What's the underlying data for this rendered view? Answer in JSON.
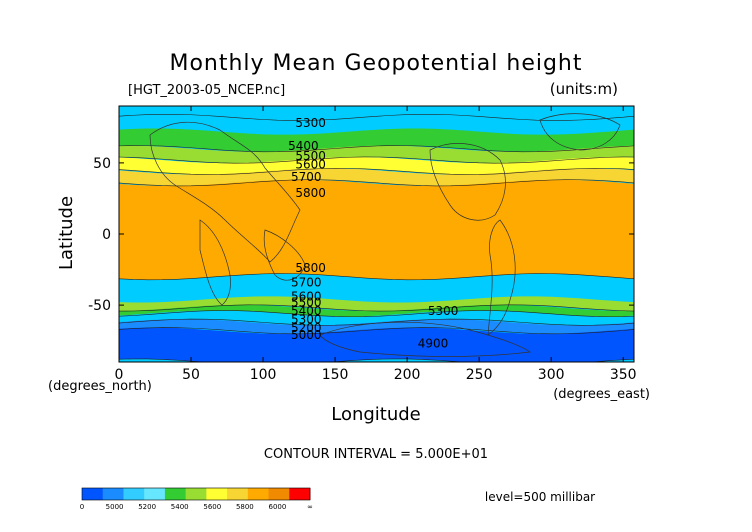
{
  "chart_data": {
    "type": "heatmap",
    "title": "Monthly Mean Geopotential height",
    "file_label": "[HGT_2003-05_NCEP.nc]",
    "units_label": "(units:m)",
    "xlabel": "Longitude",
    "ylabel": "Latitude",
    "x_unit_label": "(degrees_east)",
    "y_unit_label": "(degrees_north)",
    "xlim": [
      0,
      357.5
    ],
    "ylim": [
      -90,
      90
    ],
    "x_ticks": [
      0,
      50,
      100,
      150,
      200,
      250,
      300,
      350
    ],
    "y_ticks": [
      50,
      0,
      -50
    ],
    "contour_interval_text": "CONTOUR INTERVAL = 5.000E+01",
    "level_text": "level=500 millibar",
    "contour_labels": [
      {
        "text": "5300",
        "lon": 133,
        "lat": 78
      },
      {
        "text": "5400",
        "lon": 128,
        "lat": 62
      },
      {
        "text": "5500",
        "lon": 133,
        "lat": 55
      },
      {
        "text": "5600",
        "lon": 133,
        "lat": 49
      },
      {
        "text": "5700",
        "lon": 130,
        "lat": 40
      },
      {
        "text": "5800",
        "lon": 133,
        "lat": 29
      },
      {
        "text": "5800",
        "lon": 133,
        "lat": -24
      },
      {
        "text": "5700",
        "lon": 130,
        "lat": -34
      },
      {
        "text": "5600",
        "lon": 130,
        "lat": -44
      },
      {
        "text": "5500",
        "lon": 130,
        "lat": -48
      },
      {
        "text": "5400",
        "lon": 130,
        "lat": -54
      },
      {
        "text": "5300",
        "lon": 130,
        "lat": -60
      },
      {
        "text": "5200",
        "lon": 130,
        "lat": -66
      },
      {
        "text": "5000",
        "lon": 130,
        "lat": -71
      },
      {
        "text": "5300",
        "lon": 225,
        "lat": -54
      },
      {
        "text": "4900",
        "lon": 218,
        "lat": -77
      }
    ],
    "colorbar": {
      "colors": [
        "#0055ff",
        "#1a8cff",
        "#33ccff",
        "#66e6ff",
        "#33cc33",
        "#99dd33",
        "#ffff33",
        "#f7d533",
        "#ffaa00",
        "#f08a00",
        "#ff0000"
      ],
      "labels": [
        "0",
        "5000",
        "5200",
        "5400",
        "5600",
        "5800",
        "6000",
        "∞"
      ]
    },
    "bands": [
      {
        "value_range": [
          5200,
          5350
        ],
        "color": "#00ccff",
        "north": [
          82,
          82
        ],
        "south": null
      },
      {
        "value_range": [
          5350,
          5500
        ],
        "color": "#33cc33",
        "north": [
          72,
          60
        ],
        "south": null
      },
      {
        "value_range": [
          5500,
          5600
        ],
        "color": "#99dd33",
        "north": [
          60,
          52
        ],
        "south": null
      },
      {
        "value_range": [
          5600,
          5700
        ],
        "color": "#ffff33",
        "north": [
          52,
          44
        ],
        "south": [
          -30,
          -40
        ]
      },
      {
        "value_range": [
          5700,
          5800
        ],
        "color": "#f7d533",
        "north": [
          44,
          36
        ],
        "south": [
          -40,
          -46
        ]
      },
      {
        "value_range": [
          5800,
          5900
        ],
        "color": "#ffaa00",
        "north": [
          36,
          -30
        ],
        "south": null
      },
      {
        "value_range": [
          5500,
          5600
        ],
        "color": "#99dd33",
        "north": null,
        "south": [
          -46,
          -52
        ]
      },
      {
        "value_range": [
          5400,
          5500
        ],
        "color": "#33cc33",
        "north": null,
        "south": [
          -52,
          -56
        ]
      },
      {
        "value_range": [
          5300,
          5400
        ],
        "color": "#00ccff",
        "north": null,
        "south": [
          -56,
          -62
        ]
      },
      {
        "value_range": [
          5200,
          5300
        ],
        "color": "#1a8cff",
        "north": null,
        "south": [
          -62,
          -68
        ]
      },
      {
        "value_range": [
          4900,
          5200
        ],
        "color": "#0055ff",
        "north": null,
        "south": [
          -68,
          -90
        ]
      }
    ],
    "grid": false
  }
}
